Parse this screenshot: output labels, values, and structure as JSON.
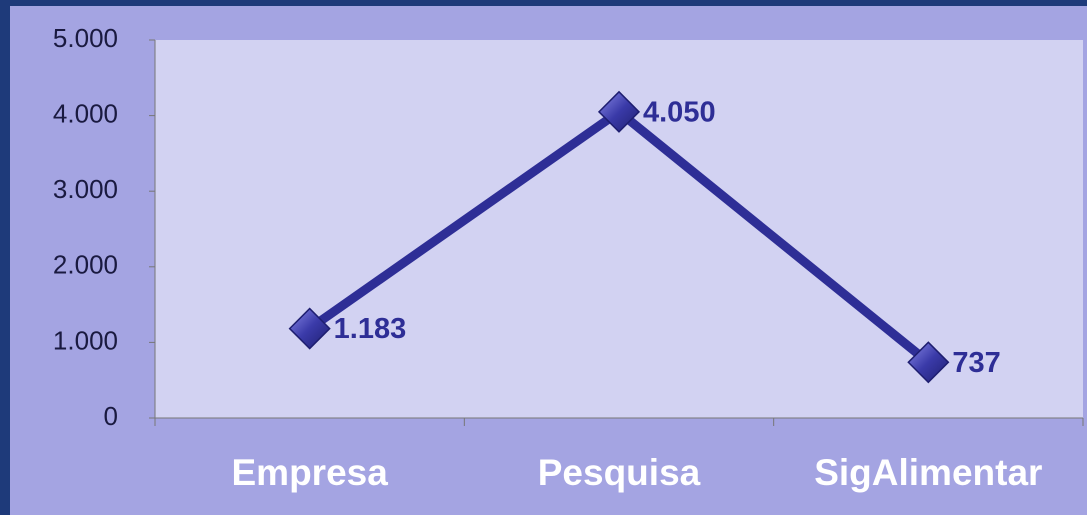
{
  "chart_data": {
    "type": "line",
    "categories": [
      "Empresa",
      "Pesquisa",
      "SigAlimentar"
    ],
    "series": [
      {
        "name": null,
        "color": "#2e2e96",
        "values": [
          1183,
          4050,
          737
        ],
        "value_labels": [
          "1.183",
          "4.050",
          "737"
        ]
      }
    ],
    "ylim": [
      0,
      5000
    ],
    "yticks": [
      0,
      {
        "value": 1000,
        "label": "1.000"
      },
      {
        "value": 2000,
        "label": "2.000"
      },
      {
        "value": 3000,
        "label": "3.000"
      },
      {
        "value": 4000,
        "label": "4.000"
      },
      {
        "value": 5000,
        "label": "5.000"
      }
    ],
    "grid": false
  }
}
